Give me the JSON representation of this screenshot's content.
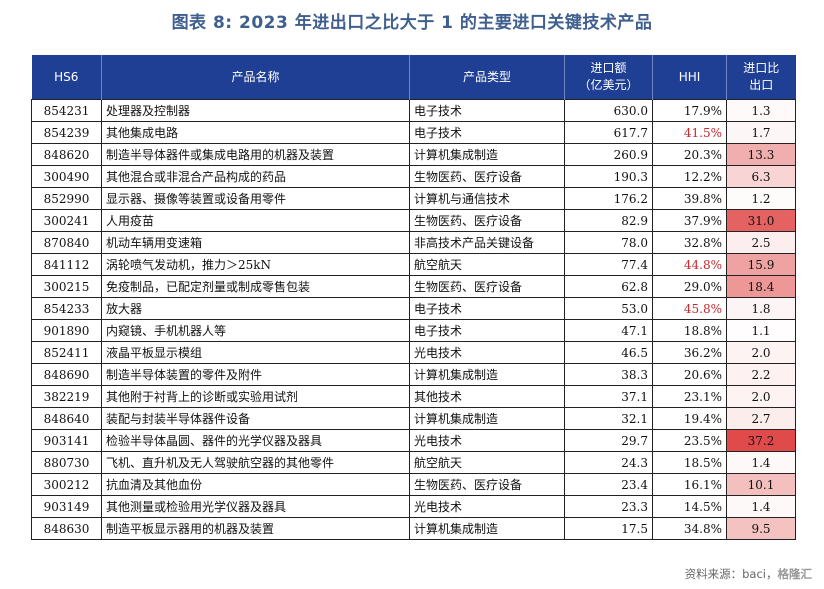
{
  "title": "图表 8:  2023 年进出口之比大于 1 的主要进口关键技术产品",
  "headers": {
    "code": "HS6",
    "name": "产品名称",
    "type": "产品类型",
    "amount_l1": "进口额",
    "amount_l2": "（亿美元）",
    "hhi": "HHI",
    "ratio_l1": "进口比",
    "ratio_l2": "出口"
  },
  "colors": {
    "header_bg": "#1f3f94",
    "title": "#3f5f8f",
    "hhi_high": "#c0282d",
    "ratio_max": "#e04a4a"
  },
  "rows": [
    {
      "code": "854231",
      "name": "处理器及控制器",
      "type": "电子技术",
      "amount": "630.0",
      "hhi": "17.9%",
      "hhi_high": false,
      "ratio": "1.3"
    },
    {
      "code": "854239",
      "name": "其他集成电路",
      "type": "电子技术",
      "amount": "617.7",
      "hhi": "41.5%",
      "hhi_high": true,
      "ratio": "1.7"
    },
    {
      "code": "848620",
      "name": "制造半导体器件或集成电路用的机器及装置",
      "type": "计算机集成制造",
      "amount": "260.9",
      "hhi": "20.3%",
      "hhi_high": false,
      "ratio": "13.3"
    },
    {
      "code": "300490",
      "name": "其他混合或非混合产品构成的药品",
      "type": "生物医药、医疗设备",
      "amount": "190.3",
      "hhi": "12.2%",
      "hhi_high": false,
      "ratio": "6.3"
    },
    {
      "code": "852990",
      "name": "显示器、摄像等装置或设备用零件",
      "type": "计算机与通信技术",
      "amount": "176.2",
      "hhi": "39.8%",
      "hhi_high": false,
      "ratio": "1.2"
    },
    {
      "code": "300241",
      "name": "人用疫苗",
      "type": "生物医药、医疗设备",
      "amount": "82.9",
      "hhi": "37.9%",
      "hhi_high": false,
      "ratio": "31.0"
    },
    {
      "code": "870840",
      "name": "机动车辆用变速箱",
      "type": "非高技术产品关键设备",
      "amount": "78.0",
      "hhi": "32.8%",
      "hhi_high": false,
      "ratio": "2.5"
    },
    {
      "code": "841112",
      "name": "涡轮喷气发动机，推力＞25kN",
      "type": "航空航天",
      "amount": "77.4",
      "hhi": "44.8%",
      "hhi_high": true,
      "ratio": "15.9"
    },
    {
      "code": "300215",
      "name": "免疫制品，已配定剂量或制成零售包装",
      "type": "生物医药、医疗设备",
      "amount": "62.8",
      "hhi": "29.0%",
      "hhi_high": false,
      "ratio": "18.4"
    },
    {
      "code": "854233",
      "name": "放大器",
      "type": "电子技术",
      "amount": "53.0",
      "hhi": "45.8%",
      "hhi_high": true,
      "ratio": "1.8"
    },
    {
      "code": "901890",
      "name": "内窥镜、手机机器人等",
      "type": "电子技术",
      "amount": "47.1",
      "hhi": "18.8%",
      "hhi_high": false,
      "ratio": "1.1"
    },
    {
      "code": "852411",
      "name": "液晶平板显示模组",
      "type": "光电技术",
      "amount": "46.5",
      "hhi": "36.2%",
      "hhi_high": false,
      "ratio": "2.0"
    },
    {
      "code": "848690",
      "name": "制造半导体装置的零件及附件",
      "type": "计算机集成制造",
      "amount": "38.3",
      "hhi": "20.6%",
      "hhi_high": false,
      "ratio": "2.2"
    },
    {
      "code": "382219",
      "name": "其他附于衬背上的诊断或实验用试剂",
      "type": "其他技术",
      "amount": "37.1",
      "hhi": "23.1%",
      "hhi_high": false,
      "ratio": "2.0"
    },
    {
      "code": "848640",
      "name": "装配与封装半导体器件设备",
      "type": "计算机集成制造",
      "amount": "32.1",
      "hhi": "19.4%",
      "hhi_high": false,
      "ratio": "2.7"
    },
    {
      "code": "903141",
      "name": "检验半导体晶圆、器件的光学仪器及器具",
      "type": "光电技术",
      "amount": "29.7",
      "hhi": "23.5%",
      "hhi_high": false,
      "ratio": "37.2"
    },
    {
      "code": "880730",
      "name": "飞机、直升机及无人驾驶航空器的其他零件",
      "type": "航空航天",
      "amount": "24.3",
      "hhi": "18.5%",
      "hhi_high": false,
      "ratio": "1.4"
    },
    {
      "code": "300212",
      "name": "抗血清及其他血份",
      "type": "生物医药、医疗设备",
      "amount": "23.4",
      "hhi": "16.1%",
      "hhi_high": false,
      "ratio": "10.1"
    },
    {
      "code": "903149",
      "name": "其他测量或检验用光学仪器及器具",
      "type": "光电技术",
      "amount": "23.3",
      "hhi": "14.5%",
      "hhi_high": false,
      "ratio": "1.4"
    },
    {
      "code": "848630",
      "name": "制造平板显示器用的机器及装置",
      "type": "计算机集成制造",
      "amount": "17.5",
      "hhi": "34.8%",
      "hhi_high": false,
      "ratio": "9.5"
    }
  ],
  "ratio_scale_max": 37.2,
  "footer": {
    "source": "资料来源：baci，",
    "watermark": "格隆汇"
  }
}
